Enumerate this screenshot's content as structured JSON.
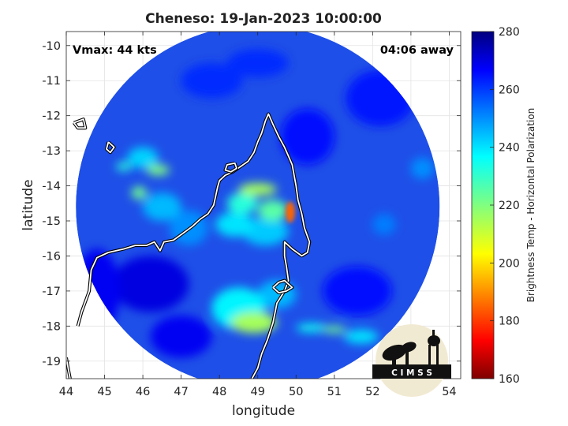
{
  "figure": {
    "title": "Cheneso: 19-Jan-2023 10:00:00",
    "vmax_label": "Vmax: 44 kts",
    "away_label": "04:06 away",
    "xlabel": "longitude",
    "ylabel": "latitude",
    "colorbar_label": "Brightness Temp - Horizontal Polarization",
    "logo_text": "C I M S S"
  },
  "map_data": {
    "xlim": [
      44,
      54.3
    ],
    "ylim": [
      -19.5,
      -9.6
    ],
    "x_ticks": [
      44,
      45,
      46,
      47,
      48,
      49,
      50,
      51,
      52,
      53,
      54
    ],
    "y_ticks": [
      -10,
      -11,
      -12,
      -13,
      -14,
      -15,
      -16,
      -17,
      -18,
      -19
    ],
    "x_tick_labels": [
      "44",
      "45",
      "46",
      "47",
      "48",
      "49",
      "50",
      "51",
      "52",
      "53",
      "54"
    ],
    "y_tick_labels": [
      "-10",
      "-11",
      "-12",
      "-13",
      "-14",
      "-15",
      "-16",
      "-17",
      "-18",
      "-19"
    ],
    "grid": true,
    "swath_center": [
      49.0,
      -14.6
    ],
    "swath_radius_deg": 4.75,
    "colorbar": {
      "range": [
        160,
        280
      ],
      "ticks": [
        160,
        180,
        200,
        220,
        240,
        260,
        280
      ],
      "tick_labels": [
        "160",
        "180",
        "200",
        "220",
        "240",
        "260",
        "280"
      ]
    },
    "features": [
      {
        "lon": 49.85,
        "lat": -14.75,
        "rx": 0.12,
        "ry": 0.3,
        "tb": 185
      },
      {
        "lon": 49.0,
        "lat": -14.1,
        "rx": 0.5,
        "ry": 0.18,
        "tb": 215
      },
      {
        "lon": 48.6,
        "lat": -14.5,
        "rx": 0.4,
        "ry": 0.3,
        "tb": 232
      },
      {
        "lon": 49.4,
        "lat": -14.7,
        "rx": 0.4,
        "ry": 0.3,
        "tb": 225
      },
      {
        "lon": 48.4,
        "lat": -15.1,
        "rx": 0.5,
        "ry": 0.35,
        "tb": 240
      },
      {
        "lon": 49.2,
        "lat": -15.3,
        "rx": 0.6,
        "ry": 0.4,
        "tb": 243
      },
      {
        "lon": 48.9,
        "lat": -17.9,
        "rx": 0.6,
        "ry": 0.3,
        "tb": 215
      },
      {
        "lon": 48.5,
        "lat": -17.5,
        "rx": 0.7,
        "ry": 0.6,
        "tb": 238
      },
      {
        "lon": 49.5,
        "lat": -17.1,
        "rx": 0.5,
        "ry": 0.4,
        "tb": 245
      },
      {
        "lon": 46.4,
        "lat": -13.55,
        "rx": 0.3,
        "ry": 0.15,
        "tb": 220
      },
      {
        "lon": 45.5,
        "lat": -13.45,
        "rx": 0.2,
        "ry": 0.12,
        "tb": 232
      },
      {
        "lon": 46.0,
        "lat": -13.2,
        "rx": 0.4,
        "ry": 0.3,
        "tb": 242
      },
      {
        "lon": 45.9,
        "lat": -14.2,
        "rx": 0.2,
        "ry": 0.18,
        "tb": 222
      },
      {
        "lon": 46.5,
        "lat": -14.6,
        "rx": 0.5,
        "ry": 0.4,
        "tb": 245
      },
      {
        "lon": 51.0,
        "lat": -18.1,
        "rx": 0.3,
        "ry": 0.1,
        "tb": 222
      },
      {
        "lon": 50.4,
        "lat": -18.05,
        "rx": 0.4,
        "ry": 0.12,
        "tb": 235
      },
      {
        "lon": 51.7,
        "lat": -18.3,
        "rx": 0.45,
        "ry": 0.2,
        "tb": 240
      },
      {
        "lon": 47.2,
        "lat": -15.2,
        "rx": 0.5,
        "ry": 0.5,
        "tb": 250
      },
      {
        "lon": 52.3,
        "lat": -15.1,
        "rx": 0.3,
        "ry": 0.3,
        "tb": 252
      },
      {
        "lon": 53.3,
        "lat": -13.5,
        "rx": 0.3,
        "ry": 0.3,
        "tb": 250
      },
      {
        "lon": 44.8,
        "lat": -17.0,
        "rx": 0.6,
        "ry": 1.2,
        "tb": 268
      },
      {
        "lon": 46.2,
        "lat": -16.8,
        "rx": 1.0,
        "ry": 0.8,
        "tb": 270
      },
      {
        "lon": 47.0,
        "lat": -18.3,
        "rx": 0.8,
        "ry": 0.6,
        "tb": 268
      },
      {
        "lon": 47.8,
        "lat": -11.0,
        "rx": 0.8,
        "ry": 0.5,
        "tb": 262
      },
      {
        "lon": 50.3,
        "lat": -12.6,
        "rx": 0.7,
        "ry": 0.8,
        "tb": 266
      },
      {
        "lon": 52.2,
        "lat": -11.5,
        "rx": 0.9,
        "ry": 0.8,
        "tb": 264
      },
      {
        "lon": 49.0,
        "lat": -10.5,
        "rx": 0.8,
        "ry": 0.4,
        "tb": 262
      },
      {
        "lon": 51.6,
        "lat": -17.0,
        "rx": 0.9,
        "ry": 0.7,
        "tb": 265
      }
    ],
    "coastline": [
      [
        [
          44.1,
          -19.5
        ],
        [
          44.05,
          -19.2
        ],
        [
          44.0,
          -18.9
        ]
      ],
      [
        [
          44.3,
          -18.0
        ],
        [
          44.4,
          -17.6
        ],
        [
          44.6,
          -17.0
        ],
        [
          44.65,
          -16.4
        ],
        [
          44.8,
          -16.05
        ],
        [
          45.1,
          -15.9
        ],
        [
          45.5,
          -15.8
        ],
        [
          45.8,
          -15.7
        ],
        [
          46.1,
          -15.7
        ],
        [
          46.3,
          -15.6
        ],
        [
          46.45,
          -15.85
        ],
        [
          46.55,
          -15.6
        ],
        [
          46.8,
          -15.55
        ],
        [
          47.05,
          -15.35
        ],
        [
          47.3,
          -15.15
        ],
        [
          47.5,
          -14.95
        ],
        [
          47.7,
          -14.8
        ],
        [
          47.85,
          -14.55
        ],
        [
          47.9,
          -14.3
        ],
        [
          47.95,
          -14.05
        ],
        [
          48.0,
          -13.85
        ],
        [
          48.15,
          -13.7
        ],
        [
          48.35,
          -13.6
        ],
        [
          48.55,
          -13.45
        ],
        [
          48.75,
          -13.3
        ],
        [
          48.9,
          -13.05
        ],
        [
          49.0,
          -12.75
        ],
        [
          49.1,
          -12.5
        ],
        [
          49.2,
          -12.15
        ],
        [
          49.28,
          -11.95
        ],
        [
          49.4,
          -12.25
        ],
        [
          49.55,
          -12.6
        ],
        [
          49.7,
          -12.9
        ],
        [
          49.8,
          -13.15
        ],
        [
          49.9,
          -13.4
        ],
        [
          49.95,
          -13.7
        ],
        [
          50.0,
          -14.0
        ],
        [
          50.05,
          -14.4
        ],
        [
          50.15,
          -14.8
        ],
        [
          50.22,
          -15.2
        ],
        [
          50.35,
          -15.6
        ],
        [
          50.3,
          -15.9
        ],
        [
          50.15,
          -16.0
        ],
        [
          49.9,
          -15.8
        ],
        [
          49.7,
          -15.6
        ],
        [
          49.7,
          -16.0
        ],
        [
          49.75,
          -16.3
        ],
        [
          49.8,
          -16.7
        ],
        [
          49.7,
          -17.0
        ],
        [
          49.5,
          -17.35
        ],
        [
          49.4,
          -17.9
        ],
        [
          49.25,
          -18.4
        ],
        [
          49.1,
          -18.8
        ],
        [
          49.0,
          -19.2
        ],
        [
          48.85,
          -19.5
        ]
      ],
      [
        [
          49.4,
          -16.9
        ],
        [
          49.55,
          -16.75
        ],
        [
          49.7,
          -16.7
        ],
        [
          49.9,
          -16.9
        ],
        [
          49.75,
          -17.0
        ],
        [
          49.55,
          -17.05
        ],
        [
          49.4,
          -16.9
        ]
      ],
      [
        [
          48.4,
          -13.35
        ],
        [
          48.2,
          -13.4
        ],
        [
          48.15,
          -13.55
        ],
        [
          48.3,
          -13.6
        ],
        [
          48.45,
          -13.5
        ],
        [
          48.4,
          -13.35
        ]
      ],
      [
        [
          45.1,
          -12.75
        ],
        [
          45.25,
          -12.9
        ],
        [
          45.15,
          -13.05
        ],
        [
          45.05,
          -12.95
        ],
        [
          45.1,
          -12.75
        ]
      ],
      [
        [
          44.2,
          -12.2
        ],
        [
          44.45,
          -12.1
        ],
        [
          44.5,
          -12.35
        ],
        [
          44.3,
          -12.35
        ],
        [
          44.2,
          -12.2
        ]
      ]
    ],
    "cities": [
      {
        "name": "",
        "lon": 52.95,
        "lat": -18.6,
        "show": false
      }
    ]
  }
}
